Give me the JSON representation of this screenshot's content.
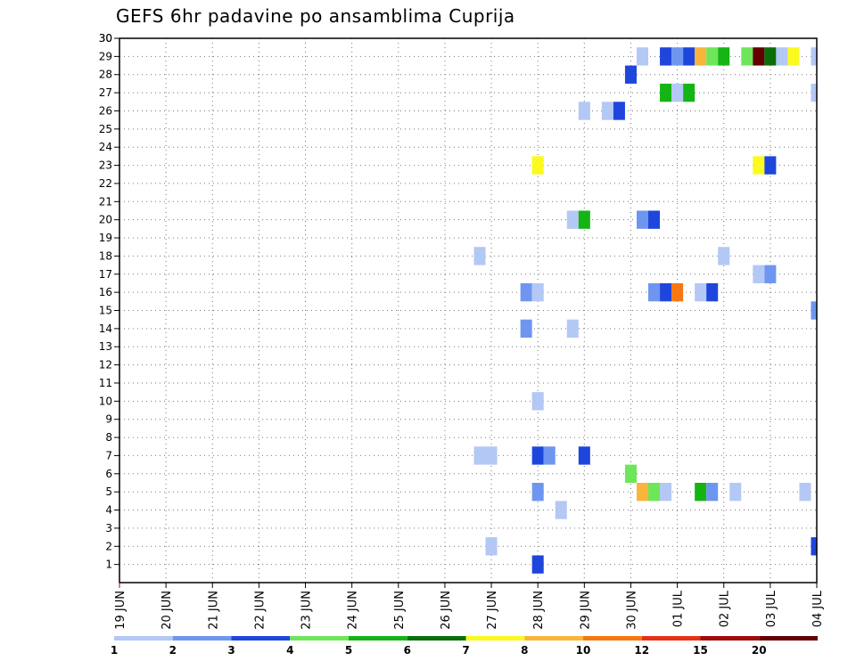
{
  "chart_data": {
    "type": "heatmap",
    "title": "GEFS 6hr padavine po ansamblima Cuprija",
    "x_labels": [
      "19 JUN",
      "20 JUN",
      "21 JUN",
      "22 JUN",
      "23 JUN",
      "24 JUN",
      "25 JUN",
      "26 JUN",
      "27 JUN",
      "28 JUN",
      "29 JUN",
      "30 JUN",
      "01 JUL",
      "02 JUL",
      "03 JUL",
      "04 JUL"
    ],
    "y_labels": [
      "1",
      "2",
      "3",
      "4",
      "5",
      "6",
      "7",
      "8",
      "9",
      "10",
      "11",
      "12",
      "13",
      "14",
      "15",
      "16",
      "17",
      "18",
      "19",
      "20",
      "21",
      "22",
      "23",
      "24",
      "25",
      "26",
      "27",
      "28",
      "29",
      "30"
    ],
    "ylim": [
      0,
      30
    ],
    "grid": true,
    "legend_position": "bottom",
    "colorbar": {
      "colors": [
        "#b4c8f5",
        "#6e96f0",
        "#1e46dc",
        "#6ee65a",
        "#14b414",
        "#0a6e0a",
        "#fafa1e",
        "#fab43c",
        "#f57814",
        "#e63214",
        "#a00a0a",
        "#640000"
      ],
      "labels": [
        "1",
        "2",
        "3",
        "4",
        "5",
        "6",
        "7",
        "8",
        "10",
        "12",
        "15",
        "20"
      ]
    },
    "cells": [
      {
        "time": "28 JUN 00",
        "member": 1,
        "value": 3
      },
      {
        "time": "27 JUN 00",
        "member": 2,
        "value": 1
      },
      {
        "time": "04 JUL 00",
        "member": 2,
        "value": 3
      },
      {
        "time": "28 JUN 12",
        "member": 4,
        "value": 1
      },
      {
        "time": "28 JUN 00",
        "member": 5,
        "value": 2
      },
      {
        "time": "30 JUN 06",
        "member": 5,
        "value": 8
      },
      {
        "time": "30 JUN 12",
        "member": 5,
        "value": 4
      },
      {
        "time": "30 JUN 18",
        "member": 5,
        "value": 1
      },
      {
        "time": "01 JUL 12",
        "member": 5,
        "value": 5
      },
      {
        "time": "01 JUL 18",
        "member": 5,
        "value": 2
      },
      {
        "time": "02 JUL 06",
        "member": 5,
        "value": 1
      },
      {
        "time": "03 JUL 18",
        "member": 5,
        "value": 1
      },
      {
        "time": "30 JUN 00",
        "member": 6,
        "value": 4
      },
      {
        "time": "26 JUN 18",
        "member": 7,
        "value": 1
      },
      {
        "time": "27 JUN 00",
        "member": 7,
        "value": 1
      },
      {
        "time": "28 JUN 00",
        "member": 7,
        "value": 3
      },
      {
        "time": "28 JUN 06",
        "member": 7,
        "value": 2
      },
      {
        "time": "29 JUN 00",
        "member": 7,
        "value": 3
      },
      {
        "time": "28 JUN 00",
        "member": 10,
        "value": 1
      },
      {
        "time": "27 JUN 18",
        "member": 14,
        "value": 2
      },
      {
        "time": "28 JUN 18",
        "member": 14,
        "value": 1
      },
      {
        "time": "04 JUL 00",
        "member": 15,
        "value": 2
      },
      {
        "time": "27 JUN 18",
        "member": 16,
        "value": 2
      },
      {
        "time": "28 JUN 00",
        "member": 16,
        "value": 1
      },
      {
        "time": "30 JUN 12",
        "member": 16,
        "value": 2
      },
      {
        "time": "30 JUN 18",
        "member": 16,
        "value": 3
      },
      {
        "time": "01 JUL 00",
        "member": 16,
        "value": 10
      },
      {
        "time": "01 JUL 12",
        "member": 16,
        "value": 1
      },
      {
        "time": "01 JUL 18",
        "member": 16,
        "value": 3
      },
      {
        "time": "26 JUN 18",
        "member": 18,
        "value": 1
      },
      {
        "time": "02 JUL 00",
        "member": 18,
        "value": 1
      },
      {
        "time": "02 JUL 18",
        "member": 17,
        "value": 1
      },
      {
        "time": "03 JUL 00",
        "member": 17,
        "value": 2
      },
      {
        "time": "28 JUN 18",
        "member": 20,
        "value": 1
      },
      {
        "time": "29 JUN 00",
        "member": 20,
        "value": 5
      },
      {
        "time": "30 JUN 06",
        "member": 20,
        "value": 2
      },
      {
        "time": "30 JUN 12",
        "member": 20,
        "value": 3
      },
      {
        "time": "28 JUN 00",
        "member": 23,
        "value": 7
      },
      {
        "time": "02 JUL 18",
        "member": 23,
        "value": 7
      },
      {
        "time": "03 JUL 00",
        "member": 23,
        "value": 3
      },
      {
        "time": "29 JUN 00",
        "member": 26,
        "value": 1
      },
      {
        "time": "29 JUN 12",
        "member": 26,
        "value": 1
      },
      {
        "time": "29 JUN 18",
        "member": 26,
        "value": 3
      },
      {
        "time": "30 JUN 18",
        "member": 27,
        "value": 5
      },
      {
        "time": "01 JUL 00",
        "member": 27,
        "value": 1
      },
      {
        "time": "01 JUL 06",
        "member": 27,
        "value": 5
      },
      {
        "time": "04 JUL 00",
        "member": 27,
        "value": 1
      },
      {
        "time": "30 JUN 00",
        "member": 28,
        "value": 3
      },
      {
        "time": "30 JUN 06",
        "member": 29,
        "value": 1
      },
      {
        "time": "30 JUN 18",
        "member": 29,
        "value": 3
      },
      {
        "time": "01 JUL 00",
        "member": 29,
        "value": 2
      },
      {
        "time": "01 JUL 06",
        "member": 29,
        "value": 3
      },
      {
        "time": "01 JUL 12",
        "member": 29,
        "value": 8
      },
      {
        "time": "01 JUL 18",
        "member": 29,
        "value": 4
      },
      {
        "time": "02 JUL 00",
        "member": 29,
        "value": 5
      },
      {
        "time": "02 JUL 12",
        "member": 29,
        "value": 4
      },
      {
        "time": "02 JUL 18",
        "member": 29,
        "value": 20
      },
      {
        "time": "03 JUL 00",
        "member": 29,
        "value": 6
      },
      {
        "time": "03 JUL 06",
        "member": 29,
        "value": 1
      },
      {
        "time": "03 JUL 12",
        "member": 29,
        "value": 7
      },
      {
        "time": "04 JUL 00",
        "member": 29,
        "value": 1
      }
    ]
  }
}
